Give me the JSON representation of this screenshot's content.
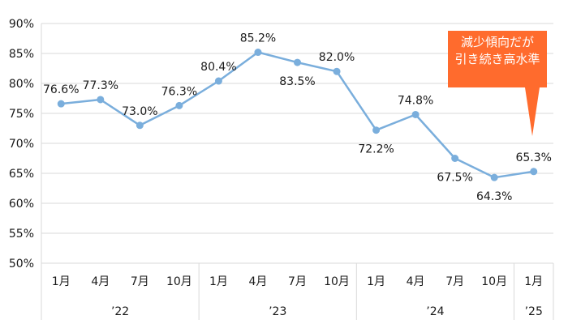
{
  "chart_data": {
    "type": "line",
    "months": [
      "1月",
      "4月",
      "7月",
      "10月",
      "1月",
      "4月",
      "7月",
      "10月",
      "1月",
      "4月",
      "7月",
      "10月",
      "1月"
    ],
    "groups": [
      {
        "label": "’22",
        "start": 0,
        "count": 4
      },
      {
        "label": "’23",
        "start": 4,
        "count": 4
      },
      {
        "label": "’24",
        "start": 8,
        "count": 4
      },
      {
        "label": "’25",
        "start": 12,
        "count": 1
      }
    ],
    "values": [
      76.6,
      77.3,
      73.0,
      76.3,
      80.4,
      85.2,
      83.5,
      82.0,
      72.2,
      74.8,
      67.5,
      64.3,
      65.3
    ],
    "data_labels": [
      "76.6%",
      "77.3%",
      "73.0%",
      "76.3%",
      "80.4%",
      "85.2%",
      "83.5%",
      "82.0%",
      "72.2%",
      "74.8%",
      "67.5%",
      "64.3%",
      "65.3%"
    ],
    "label_positions": [
      "above",
      "above",
      "above",
      "above",
      "above",
      "above",
      "below",
      "above",
      "below",
      "above",
      "below",
      "below",
      "above"
    ],
    "y_ticks": [
      "50%",
      "55%",
      "60%",
      "65%",
      "70%",
      "75%",
      "80%",
      "85%",
      "90%"
    ],
    "ylim": [
      50,
      90
    ],
    "ystep": 5,
    "grid": true,
    "line_color": "#7aaedc",
    "grid_color": "#d9d9d9",
    "title": "",
    "xlabel": "",
    "ylabel": ""
  },
  "annotation": {
    "line1": "減少傾向だが",
    "line2": "引き続き高水準",
    "color": "#ff6b2d"
  }
}
